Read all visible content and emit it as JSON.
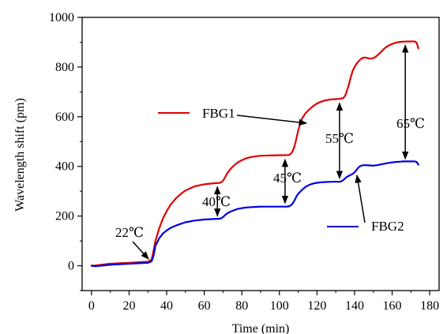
{
  "chart_data": {
    "type": "line",
    "xlabel": "Time (min)",
    "ylabel": "Wavelength shift (pm)",
    "xlim": [
      -5,
      185
    ],
    "ylim": [
      -100,
      1000
    ],
    "x_ticks": [
      0,
      20,
      40,
      60,
      80,
      100,
      120,
      140,
      160,
      180
    ],
    "x_tick_labels": [
      "0",
      "20",
      "40",
      "60",
      "80",
      "100",
      "120",
      "140",
      "160",
      "180"
    ],
    "y_ticks": [
      0,
      200,
      400,
      600,
      800,
      1000
    ],
    "y_tick_labels": [
      "0",
      "200",
      "400",
      "600",
      "800",
      "1000"
    ],
    "grid": false,
    "series": [
      {
        "name": "FBG1",
        "color": "#e00000",
        "x": [
          0,
          2,
          5,
          10,
          15,
          20,
          25,
          30,
          32,
          33,
          34,
          36,
          38,
          40,
          42,
          45,
          48,
          50,
          55,
          60,
          65,
          67,
          68,
          69,
          70,
          71,
          72,
          74,
          76,
          78,
          80,
          82,
          85,
          88,
          90,
          95,
          100,
          105,
          106,
          107,
          108,
          109,
          110,
          111,
          112,
          114,
          116,
          118,
          120,
          122,
          124,
          126,
          128,
          130,
          132,
          134,
          135,
          136,
          137,
          138,
          139,
          140,
          141,
          142,
          143,
          144,
          145,
          146,
          147,
          148,
          149,
          150,
          151,
          152,
          153,
          154,
          155,
          156,
          157,
          158,
          159,
          160,
          162,
          164,
          166,
          168,
          170,
          172,
          173,
          174
        ],
        "y": [
          0,
          1,
          4,
          8,
          10,
          12,
          14,
          16,
          25,
          60,
          100,
          150,
          190,
          220,
          245,
          272,
          292,
          303,
          320,
          328,
          332,
          333,
          333,
          336,
          342,
          355,
          370,
          390,
          405,
          417,
          425,
          432,
          438,
          441,
          443,
          444,
          445,
          446,
          450,
          460,
          480,
          510,
          545,
          570,
          592,
          615,
          630,
          643,
          653,
          660,
          665,
          668,
          670,
          671,
          672,
          675,
          685,
          705,
          730,
          760,
          785,
          800,
          812,
          822,
          830,
          836,
          838,
          838,
          836,
          834,
          834,
          836,
          840,
          846,
          853,
          860,
          868,
          875,
          881,
          886,
          890,
          893,
          898,
          901,
          902,
          903,
          903,
          903,
          898,
          875
        ]
      },
      {
        "name": "FBG2",
        "color": "#0000e0",
        "x": [
          0,
          2,
          5,
          10,
          15,
          20,
          25,
          30,
          32,
          33,
          34,
          36,
          38,
          40,
          42,
          45,
          48,
          50,
          55,
          60,
          65,
          67,
          68,
          69,
          70,
          71,
          72,
          74,
          76,
          78,
          80,
          82,
          85,
          88,
          90,
          95,
          100,
          104,
          105,
          106,
          107,
          108,
          109,
          110,
          112,
          114,
          116,
          118,
          120,
          122,
          125,
          128,
          130,
          132,
          133,
          134,
          135,
          136,
          137,
          138,
          139,
          140,
          141,
          142,
          143,
          144,
          145,
          146,
          148,
          150,
          152,
          154,
          156,
          158,
          160,
          162,
          164,
          166,
          168,
          170,
          172,
          173,
          174
        ],
        "y": [
          0,
          -2,
          0,
          4,
          6,
          8,
          10,
          12,
          18,
          40,
          80,
          110,
          130,
          142,
          152,
          162,
          170,
          175,
          182,
          186,
          188,
          189,
          189,
          191,
          196,
          203,
          210,
          218,
          224,
          229,
          232,
          234,
          236,
          237,
          238,
          238,
          238,
          238,
          239,
          243,
          250,
          262,
          278,
          290,
          305,
          318,
          326,
          331,
          334,
          336,
          337,
          338,
          338,
          338,
          340,
          345,
          352,
          358,
          362,
          366,
          370,
          376,
          385,
          395,
          401,
          404,
          405,
          405,
          404,
          403,
          405,
          408,
          411,
          414,
          416,
          418,
          419,
          420,
          420,
          420,
          420,
          418,
          407
        ]
      }
    ],
    "legend": [
      {
        "name": "FBG1",
        "color": "#e00000"
      },
      {
        "name": "FBG2",
        "color": "#0000e0"
      }
    ],
    "annotations": [
      {
        "text": "22℃"
      },
      {
        "text": "40℃"
      },
      {
        "text": "45℃"
      },
      {
        "text": "55℃"
      },
      {
        "text": "65℃"
      }
    ]
  }
}
